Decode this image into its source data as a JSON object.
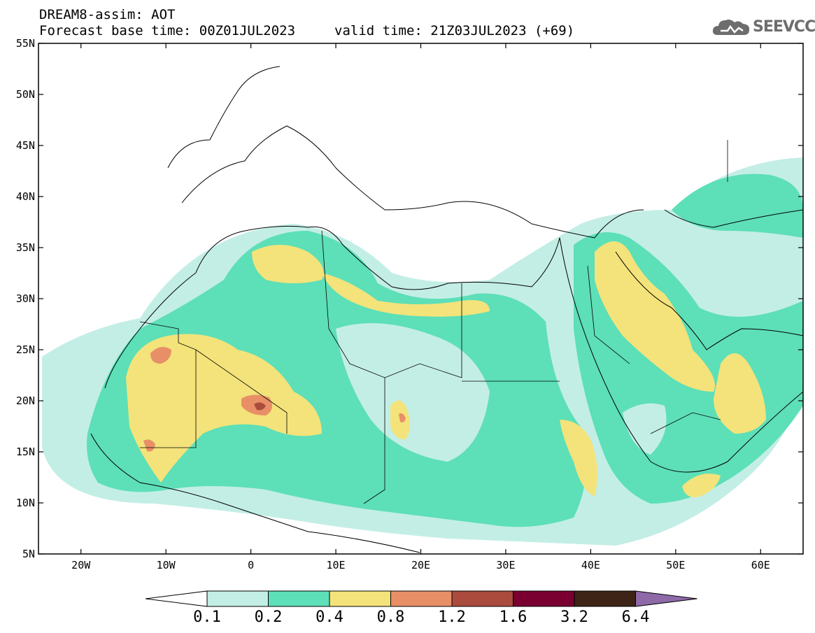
{
  "header": {
    "title": "DREAM8-assim: AOT",
    "base_time": "Forecast base time: 00Z01JUL2023",
    "valid_time": "valid time: 21Z03JUL2023 (+69)"
  },
  "logo": {
    "text": "SEEVCCC",
    "icon": "cloud-icon"
  },
  "map": {
    "lon_range": [
      -25,
      65
    ],
    "lat_range": [
      5,
      55
    ],
    "lon_ticks": [
      {
        "lon": -20,
        "label": "20W"
      },
      {
        "lon": -10,
        "label": "10W"
      },
      {
        "lon": 0,
        "label": "0"
      },
      {
        "lon": 10,
        "label": "10E"
      },
      {
        "lon": 20,
        "label": "20E"
      },
      {
        "lon": 30,
        "label": "30E"
      },
      {
        "lon": 40,
        "label": "40E"
      },
      {
        "lon": 50,
        "label": "50E"
      },
      {
        "lon": 60,
        "label": "60E"
      }
    ],
    "lat_ticks": [
      {
        "lat": 55,
        "label": "55N"
      },
      {
        "lat": 50,
        "label": "50N"
      },
      {
        "lat": 45,
        "label": "45N"
      },
      {
        "lat": 40,
        "label": "40N"
      },
      {
        "lat": 35,
        "label": "35N"
      },
      {
        "lat": 30,
        "label": "30N"
      },
      {
        "lat": 25,
        "label": "25N"
      },
      {
        "lat": 20,
        "label": "20N"
      },
      {
        "lat": 15,
        "label": "15N"
      },
      {
        "lat": 10,
        "label": "10N"
      },
      {
        "lat": 5,
        "label": "5N"
      }
    ]
  },
  "colorbar": {
    "colors": [
      "#c3eee6",
      "#5ddfb8",
      "#f3e37a",
      "#e88f68",
      "#aa4b3e",
      "#7a0032",
      "#3d2416",
      "#8e6aa8"
    ],
    "labels": [
      "0.1",
      "0.2",
      "0.4",
      "0.8",
      "1.2",
      "1.6",
      "3.2",
      "6.4"
    ]
  }
}
